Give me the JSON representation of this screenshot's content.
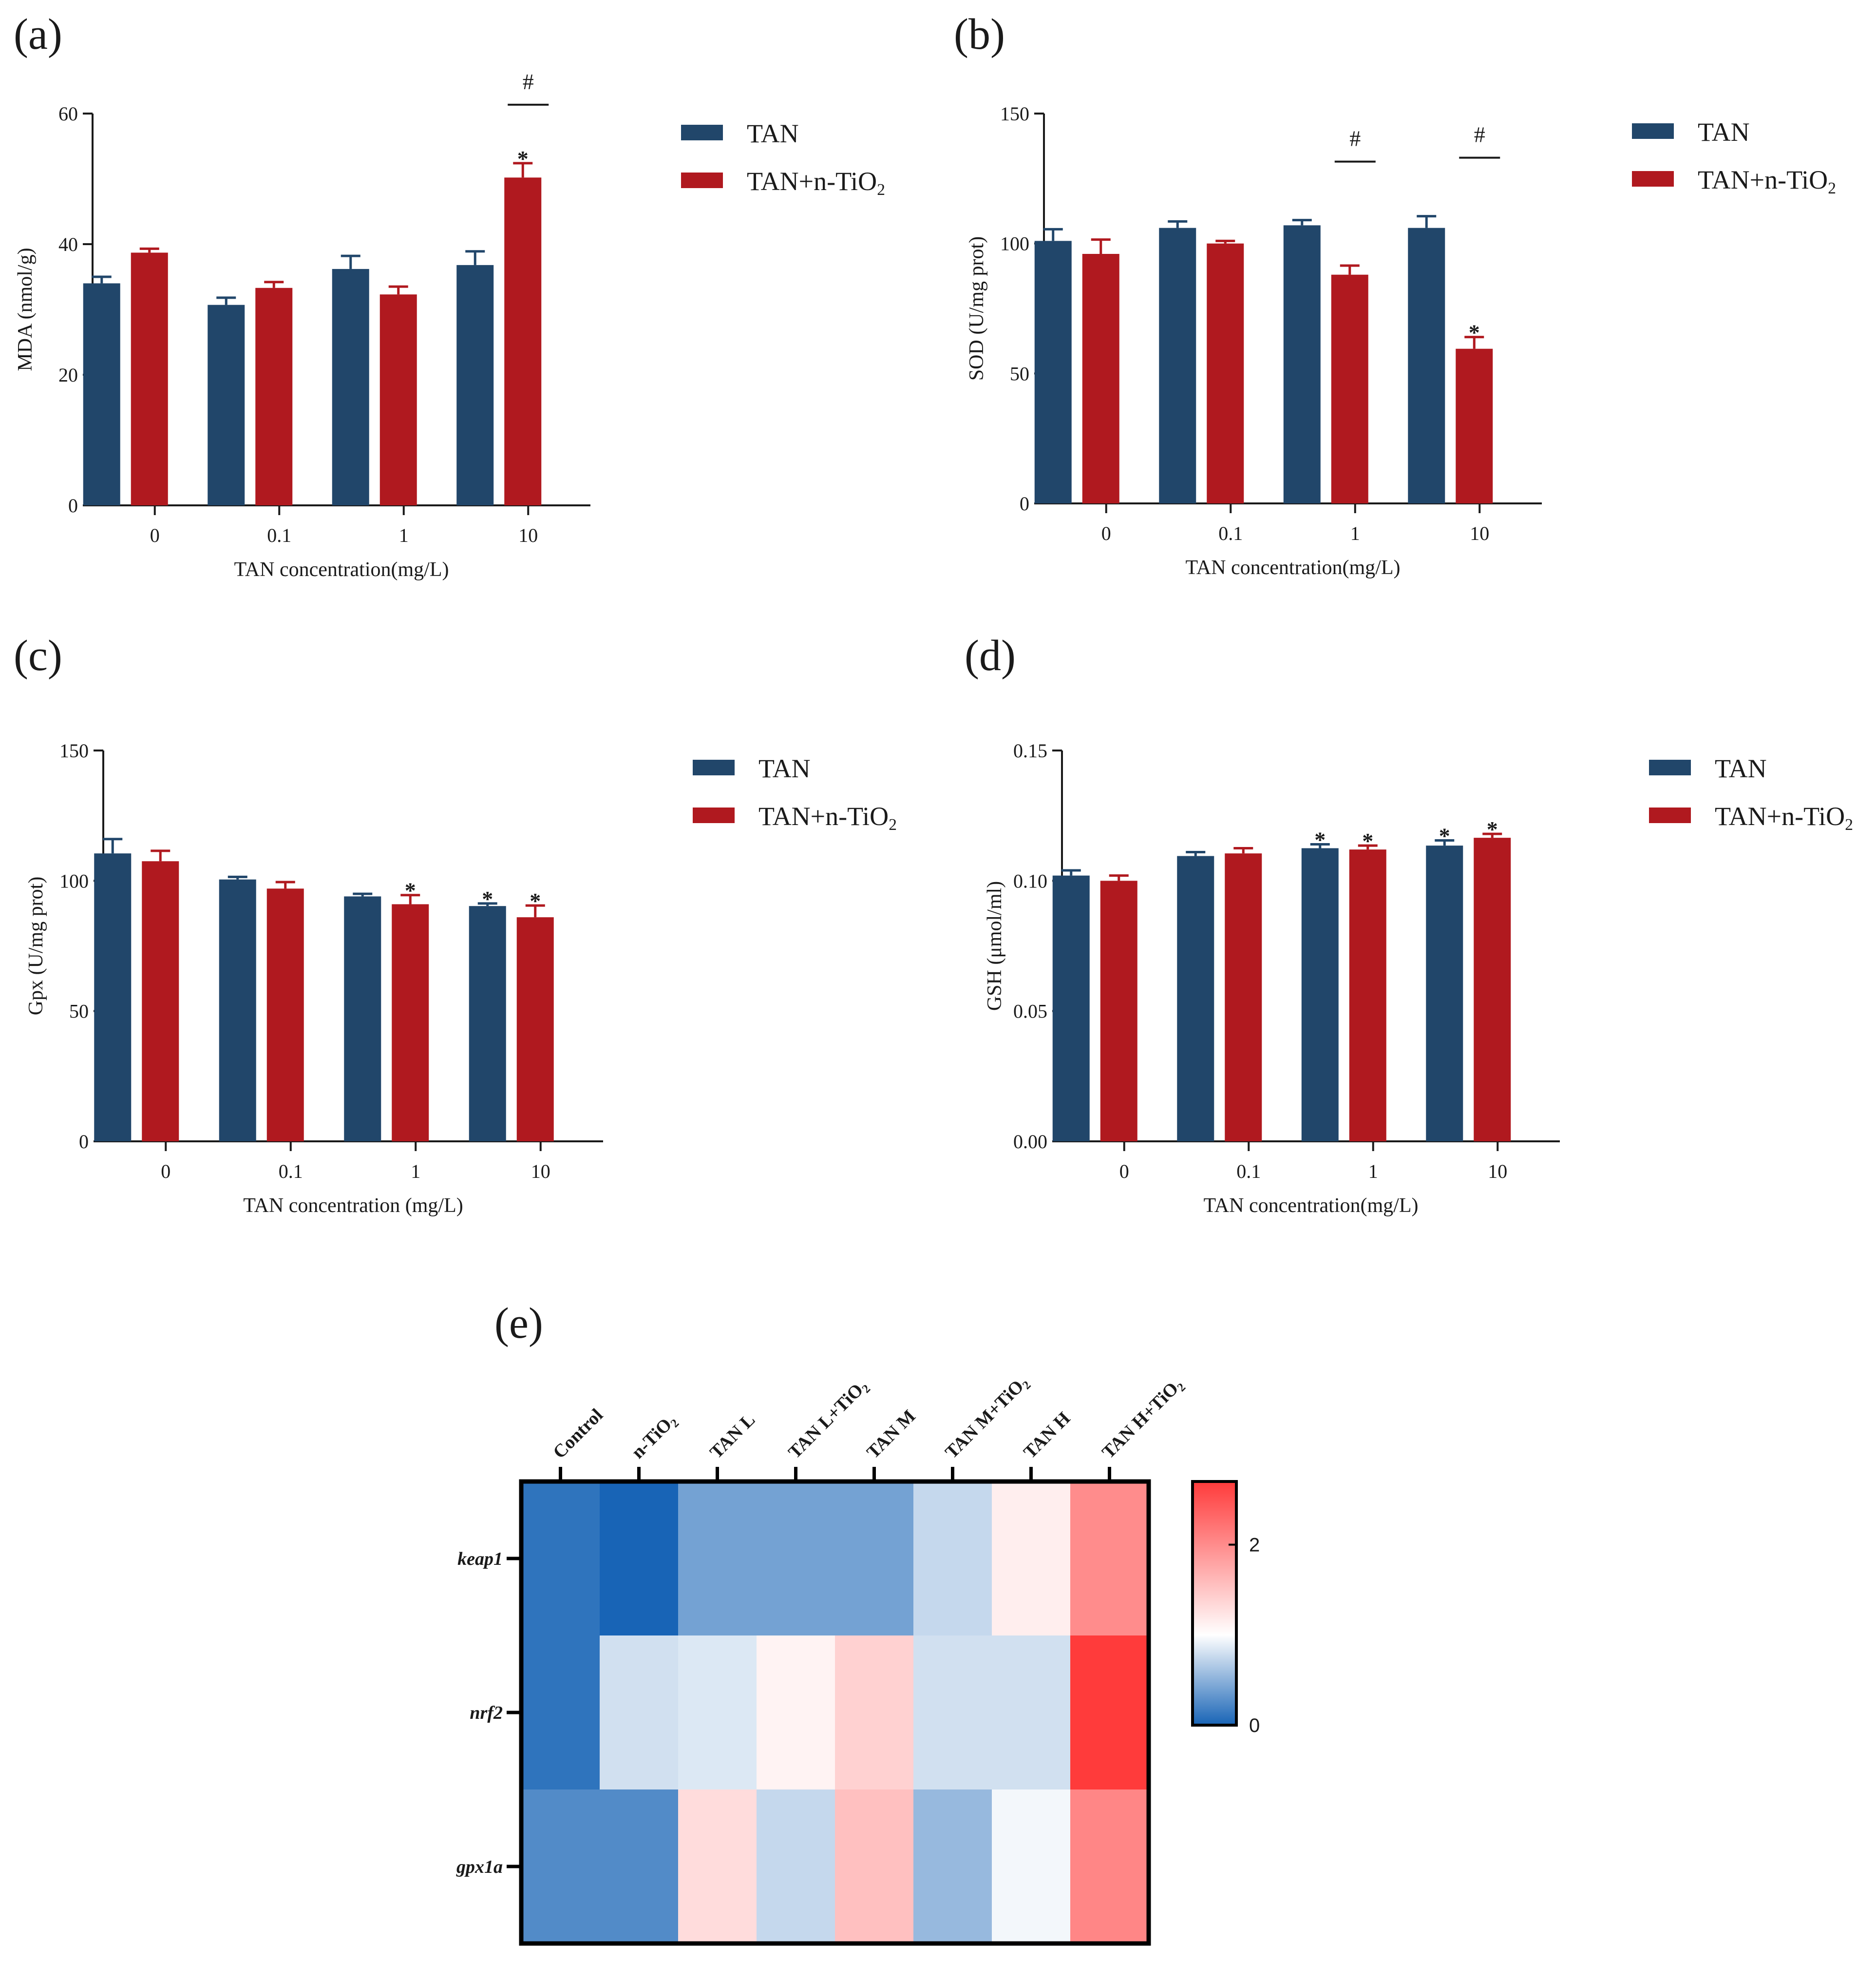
{
  "colors": {
    "TAN": "#21466a",
    "TAN_nTiO2": "#b0191f",
    "axis": "#1a1a1a"
  },
  "chart_data": [
    {
      "panel": "(a)",
      "type": "bar",
      "categories": [
        "0",
        "0.1",
        "1",
        "10"
      ],
      "xlabel": "TAN concentration(mg/L)",
      "ylabel": "MDA (nmol/g)",
      "ylim": [
        0,
        60
      ],
      "yticks": [
        "0",
        "20",
        "40",
        "60"
      ],
      "legend": [
        "TAN",
        "TAN+n-TiO2"
      ],
      "series": [
        {
          "name": "TAN",
          "values": [
            34,
            30.7,
            36.2,
            36.8
          ],
          "errors": [
            1.0,
            1.1,
            2.0,
            2.1
          ]
        },
        {
          "name": "TAN+n-TiO2",
          "values": [
            38.7,
            33.3,
            32.3,
            50.2
          ],
          "errors": [
            0.6,
            0.9,
            1.2,
            2.2
          ]
        }
      ],
      "stars": [
        {
          "series": 1,
          "category": 3
        }
      ],
      "hashes": [
        {
          "category": 3,
          "label": "#"
        }
      ]
    },
    {
      "panel": "(b)",
      "type": "bar",
      "categories": [
        "0",
        "0.1",
        "1",
        "10"
      ],
      "xlabel": "TAN concentration(mg/L)",
      "ylabel": "SOD (U/mg prot)",
      "ylim": [
        0,
        150
      ],
      "yticks": [
        "0",
        "50",
        "100",
        "150"
      ],
      "legend": [
        "TAN",
        "TAN+n-TiO2"
      ],
      "series": [
        {
          "name": "TAN",
          "values": [
            101,
            106,
            107,
            106
          ],
          "errors": [
            4.5,
            2.5,
            2.0,
            4.5
          ]
        },
        {
          "name": "TAN+n-TiO2",
          "values": [
            96,
            100,
            88,
            59.5
          ],
          "errors": [
            5.5,
            1.0,
            3.5,
            4.5
          ]
        }
      ],
      "stars": [
        {
          "series": 1,
          "category": 3
        }
      ],
      "hashes": [
        {
          "category": 2,
          "label": "#"
        },
        {
          "category": 3,
          "label": "#"
        }
      ]
    },
    {
      "panel": "(c)",
      "type": "bar",
      "categories": [
        "0",
        "0.1",
        "1",
        "10"
      ],
      "xlabel": "TAN concentration (mg/L)",
      "ylabel": "Gpx (U/mg prot)",
      "ylim": [
        0,
        150
      ],
      "yticks": [
        "0",
        "50",
        "100",
        "150"
      ],
      "legend": [
        "TAN",
        "TAN+n-TiO2"
      ],
      "series": [
        {
          "name": "TAN",
          "values": [
            110.5,
            100.5,
            94,
            90.3
          ],
          "errors": [
            5.5,
            1.0,
            1.0,
            1.0
          ]
        },
        {
          "name": "TAN+n-TiO2",
          "values": [
            107.5,
            97,
            91,
            86
          ],
          "errors": [
            4.0,
            2.5,
            3.5,
            4.5
          ]
        }
      ],
      "stars": [
        {
          "series": 1,
          "category": 2
        },
        {
          "series": 0,
          "category": 3
        },
        {
          "series": 1,
          "category": 3
        }
      ],
      "hashes": []
    },
    {
      "panel": "(d)",
      "type": "bar",
      "categories": [
        "0",
        "0.1",
        "1",
        "10"
      ],
      "xlabel": "TAN concentration(mg/L)",
      "ylabel": "GSH (μmol/ml)",
      "ylim": [
        0,
        0.15
      ],
      "yticks": [
        "0.00",
        "0.05",
        "0.10",
        "0.15"
      ],
      "legend": [
        "TAN",
        "TAN+n-TiO2"
      ],
      "series": [
        {
          "name": "TAN",
          "values": [
            0.102,
            0.1095,
            0.1125,
            0.1135
          ],
          "errors": [
            0.002,
            0.0015,
            0.0015,
            0.002
          ]
        },
        {
          "name": "TAN+n-TiO2",
          "values": [
            0.1,
            0.1105,
            0.112,
            0.1165
          ],
          "errors": [
            0.002,
            0.002,
            0.0015,
            0.0015
          ]
        }
      ],
      "stars": [
        {
          "series": 0,
          "category": 2
        },
        {
          "series": 1,
          "category": 2
        },
        {
          "series": 0,
          "category": 3
        },
        {
          "series": 1,
          "category": 3
        }
      ],
      "hashes": []
    },
    {
      "panel": "(e)",
      "type": "heatmap",
      "columns": [
        "Control",
        "n-TiO2",
        "TAN L",
        "TAN L+TiO2",
        "TAN M",
        "TAN M+TiO2",
        "TAN H",
        "TAN H+TiO2"
      ],
      "rows": [
        "keap1",
        "nrf2",
        "gpx1a"
      ],
      "values": [
        [
          0.1,
          0.0,
          0.4,
          0.4,
          0.4,
          0.75,
          1.15,
          2.0
        ],
        [
          0.1,
          0.8,
          0.85,
          1.1,
          1.4,
          0.8,
          0.8,
          2.7
        ],
        [
          0.25,
          0.25,
          1.3,
          0.75,
          1.55,
          0.55,
          0.95,
          2.05
        ]
      ],
      "colorbar": {
        "min": 0,
        "max": 2.7,
        "ticks": [
          "0",
          "2"
        ],
        "low": "#1864b6",
        "mid": "#ffffff",
        "high": "#ff3b3b"
      }
    }
  ]
}
